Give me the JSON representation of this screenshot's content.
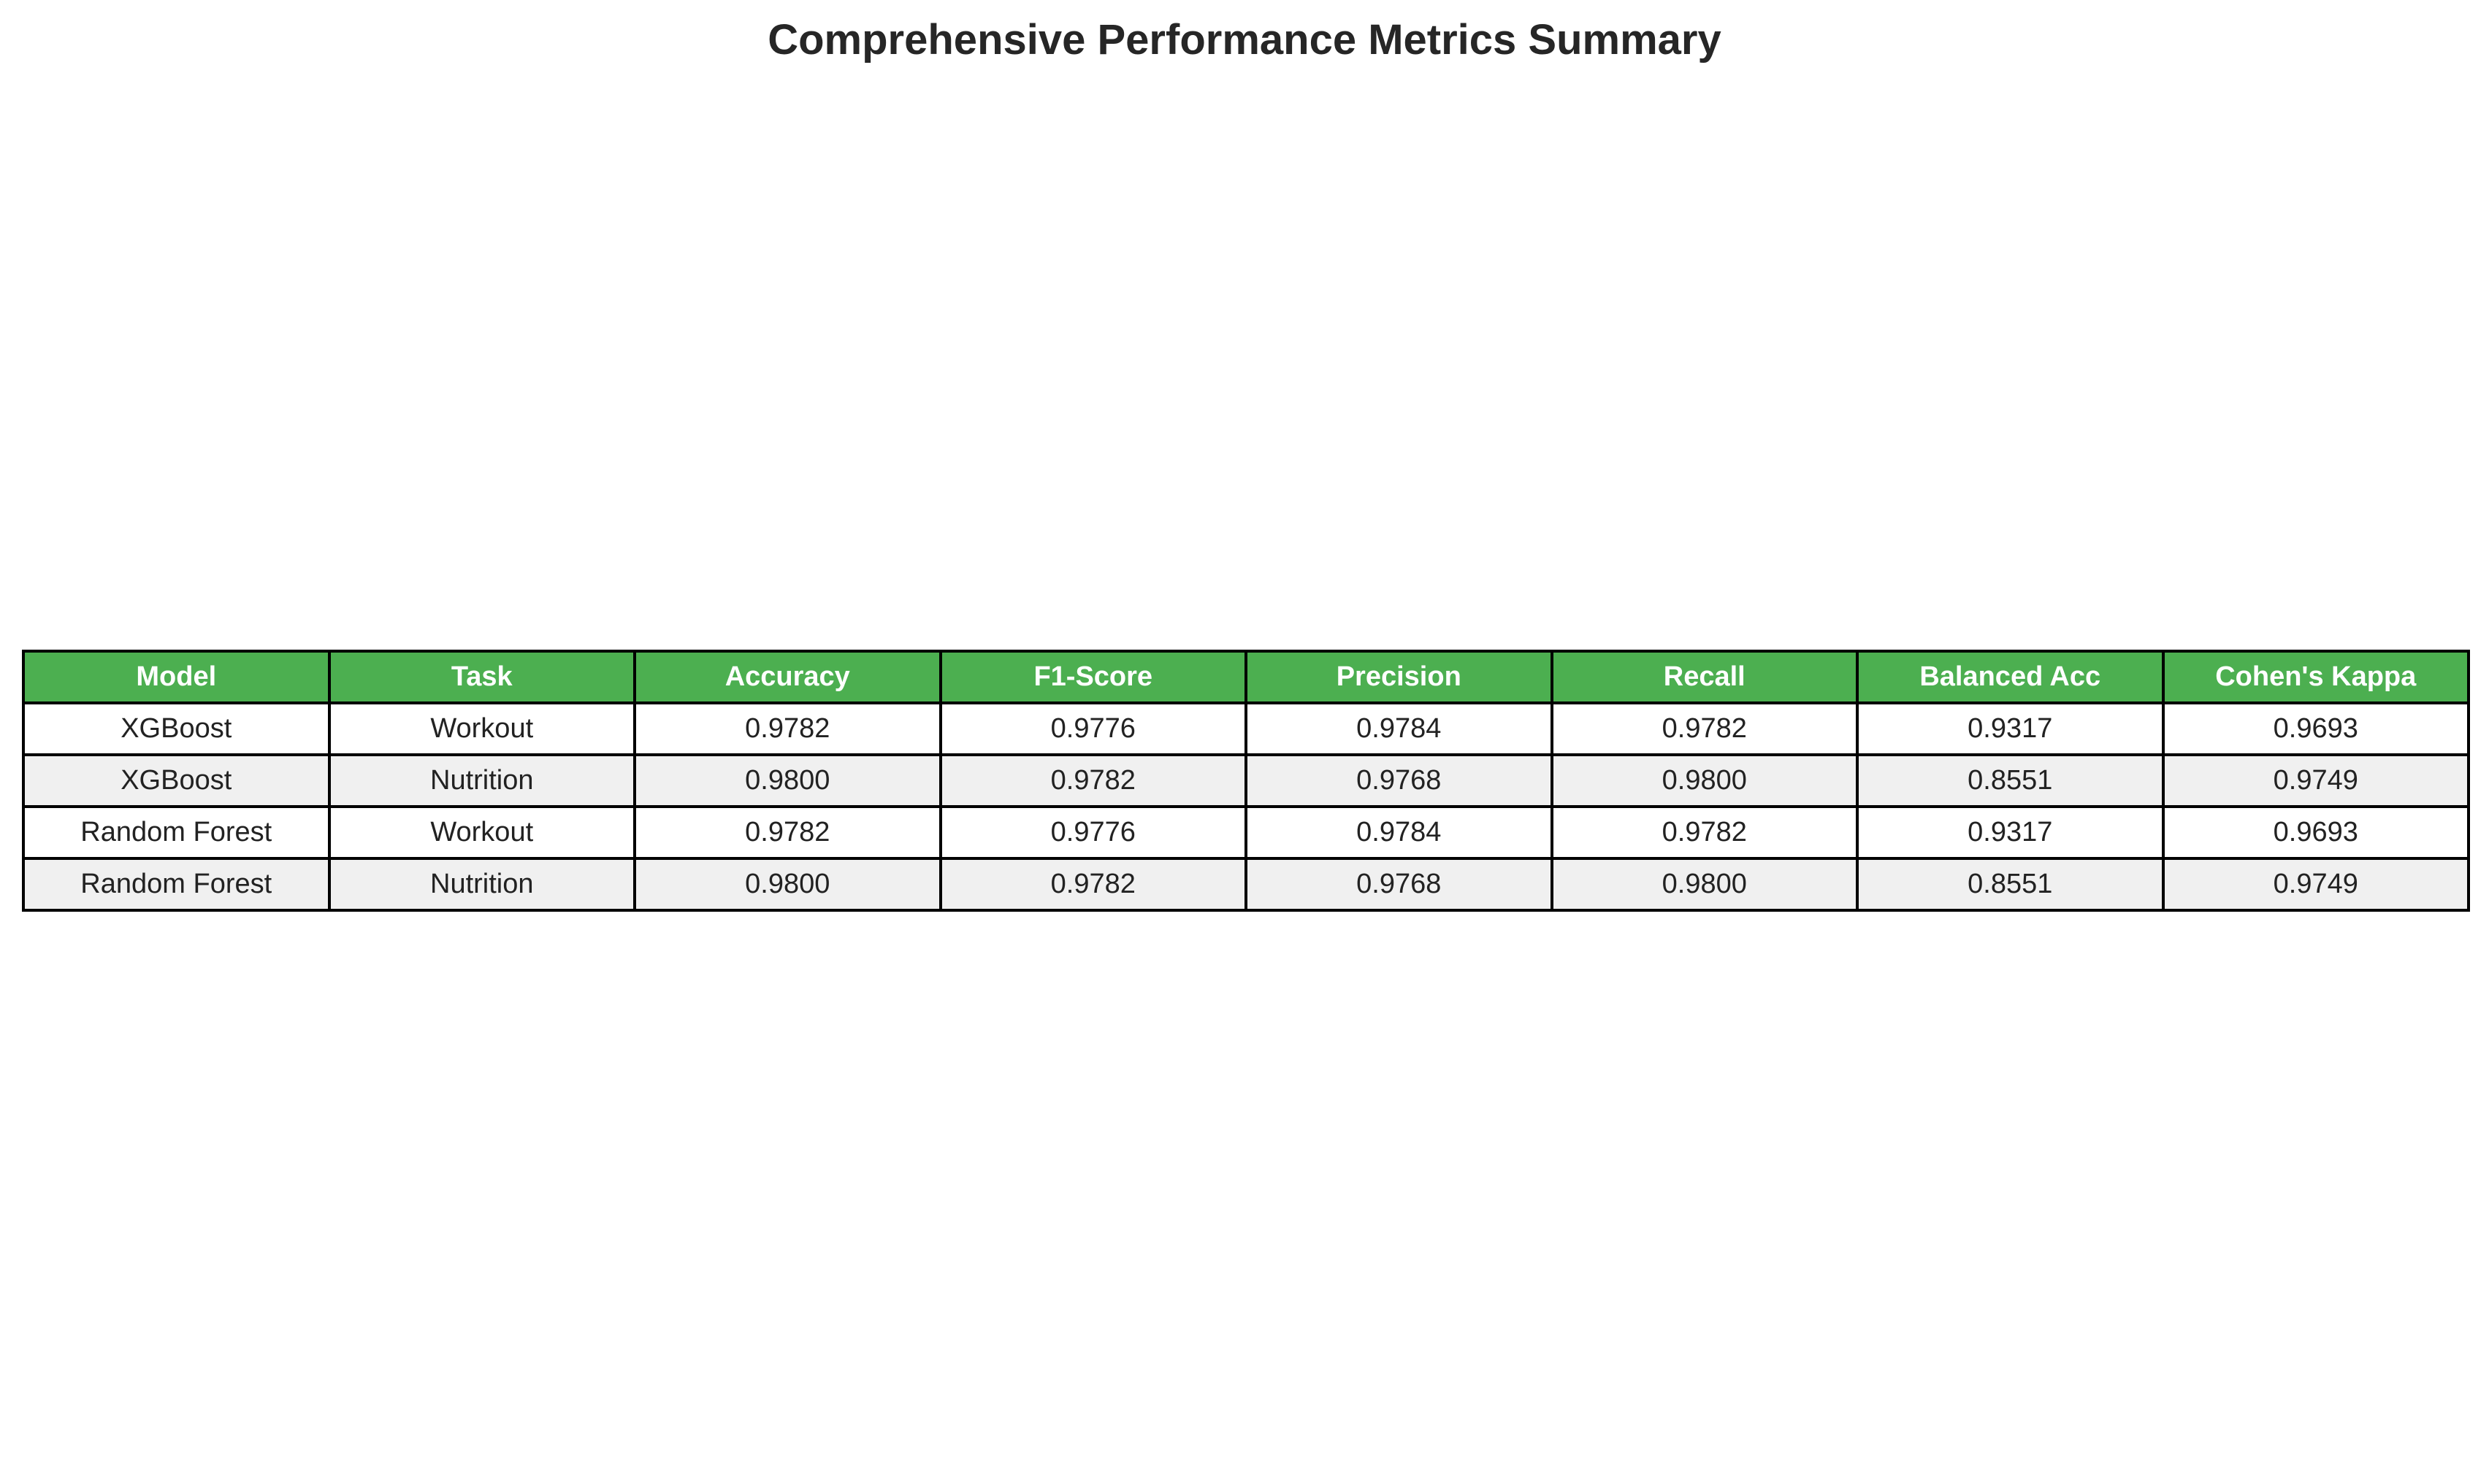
{
  "chart_data": {
    "type": "table",
    "title": "Comprehensive Performance Metrics Summary",
    "columns": [
      "Model",
      "Task",
      "Accuracy",
      "F1-Score",
      "Precision",
      "Recall",
      "Balanced Acc",
      "Cohen's Kappa"
    ],
    "rows": [
      [
        "XGBoost",
        "Workout",
        "0.9782",
        "0.9776",
        "0.9784",
        "0.9782",
        "0.9317",
        "0.9693"
      ],
      [
        "XGBoost",
        "Nutrition",
        "0.9800",
        "0.9782",
        "0.9768",
        "0.9800",
        "0.8551",
        "0.9749"
      ],
      [
        "Random Forest",
        "Workout",
        "0.9782",
        "0.9776",
        "0.9784",
        "0.9782",
        "0.9317",
        "0.9693"
      ],
      [
        "Random Forest",
        "Nutrition",
        "0.9800",
        "0.9782",
        "0.9768",
        "0.9800",
        "0.8551",
        "0.9749"
      ]
    ]
  },
  "colors": {
    "header_bg": "#4caf50",
    "header_text": "#ffffff",
    "row_odd_bg": "#ffffff",
    "row_even_bg": "#f0f0f0",
    "border": "#000000"
  }
}
